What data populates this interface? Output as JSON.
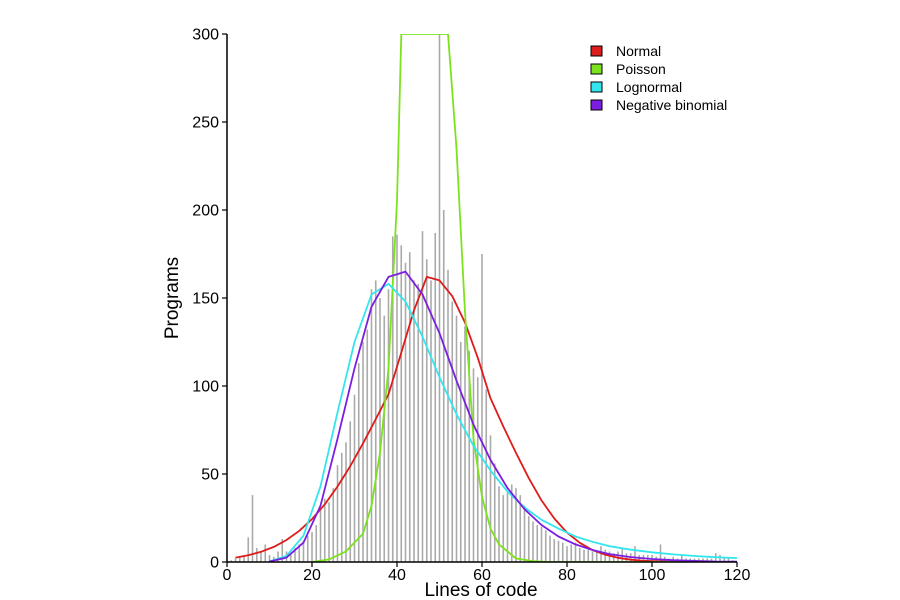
{
  "chart_data": {
    "type": "bar",
    "xlabel": "Lines of code",
    "ylabel": "Programs",
    "xlim": [
      0,
      120
    ],
    "ylim": [
      0,
      300
    ],
    "xticks": [
      0,
      20,
      40,
      60,
      80,
      100,
      120
    ],
    "yticks": [
      0,
      50,
      100,
      150,
      200,
      250,
      300
    ],
    "grid": false,
    "legend_position": "top-right",
    "histogram": {
      "color": "#aaaaaa",
      "x": [
        1,
        2,
        3,
        4,
        5,
        6,
        7,
        8,
        9,
        10,
        11,
        12,
        13,
        14,
        15,
        16,
        17,
        18,
        19,
        20,
        21,
        22,
        23,
        24,
        25,
        26,
        27,
        28,
        29,
        30,
        31,
        32,
        33,
        34,
        35,
        36,
        37,
        38,
        39,
        40,
        41,
        42,
        43,
        44,
        45,
        46,
        47,
        48,
        49,
        50,
        51,
        52,
        53,
        54,
        55,
        56,
        57,
        58,
        59,
        60,
        61,
        62,
        63,
        64,
        65,
        66,
        67,
        68,
        69,
        70,
        71,
        72,
        73,
        74,
        75,
        76,
        77,
        78,
        79,
        80,
        81,
        82,
        83,
        84,
        85,
        86,
        87,
        88,
        89,
        90,
        91,
        92,
        93,
        94,
        95,
        96,
        97,
        98,
        99,
        100,
        101,
        102,
        103,
        104,
        105,
        106,
        107,
        108,
        109,
        110,
        111,
        112,
        113,
        114,
        115,
        116,
        117,
        118,
        119
      ],
      "values": [
        1,
        2,
        3,
        4,
        14,
        38,
        8,
        6,
        10,
        4,
        3,
        6,
        13,
        6,
        4,
        8,
        10,
        12,
        15,
        17,
        21,
        30,
        36,
        34,
        42,
        55,
        62,
        68,
        80,
        95,
        113,
        125,
        132,
        155,
        160,
        150,
        140,
        155,
        185,
        186,
        180,
        170,
        176,
        160,
        158,
        188,
        172,
        160,
        187,
        300,
        200,
        166,
        148,
        140,
        125,
        134,
        120,
        110,
        105,
        175,
        98,
        72,
        56,
        43,
        38,
        40,
        44,
        42,
        38,
        32,
        26,
        23,
        21,
        20,
        18,
        15,
        13,
        12,
        11,
        9,
        10,
        11,
        8,
        7,
        7,
        6,
        6,
        9,
        7,
        6,
        5,
        6,
        8,
        5,
        5,
        9,
        4,
        4,
        4,
        4,
        3,
        10,
        3,
        2,
        3,
        2,
        4,
        2,
        2,
        2,
        2,
        2,
        2,
        2,
        5,
        4,
        2,
        2,
        1
      ]
    },
    "series": [
      {
        "name": "Normal",
        "color": "#dd1c1c",
        "x": [
          2,
          5,
          8,
          11,
          14,
          17,
          20,
          23,
          26,
          29,
          32,
          35,
          38,
          41,
          44,
          47,
          50,
          53,
          56,
          59,
          62,
          65,
          68,
          71,
          74,
          77,
          80,
          83,
          86,
          89,
          92,
          95,
          98,
          101,
          104,
          107,
          110,
          113,
          116,
          119
        ],
        "y": [
          2.5,
          3.8,
          5.8,
          8.6,
          12.5,
          17.7,
          24.4,
          32.8,
          42.9,
          54.5,
          67.4,
          81.2,
          95.3,
          119,
          143,
          162,
          160,
          151,
          136,
          116,
          93,
          77,
          62,
          47.6,
          35,
          24.7,
          16.7,
          10.9,
          6.8,
          4.1,
          2.4,
          1.3,
          0.7,
          0.4,
          0.2,
          0.1,
          0,
          0,
          0,
          0
        ]
      },
      {
        "name": "Poisson",
        "color": "#7de21e",
        "x": [
          20,
          24,
          28,
          32,
          34,
          36,
          38,
          40,
          41,
          42,
          44,
          46,
          48,
          49,
          50,
          51,
          52,
          54,
          56,
          58,
          60,
          62,
          64,
          68,
          72,
          76,
          80,
          90,
          100,
          110,
          120
        ],
        "y": [
          0,
          1.5,
          6,
          16,
          32,
          62,
          110,
          205,
          300,
          300,
          300,
          300,
          300,
          300,
          300,
          300,
          300,
          235,
          142,
          70,
          37,
          19,
          10,
          2,
          0.5,
          0,
          0,
          0,
          0,
          0,
          0
        ]
      },
      {
        "name": "Lognormal",
        "color": "#33e6ee",
        "x": [
          10,
          14,
          18,
          22,
          26,
          30,
          34,
          38,
          42,
          46,
          50,
          54,
          58,
          62,
          66,
          70,
          74,
          78,
          82,
          86,
          90,
          95,
          100,
          105,
          110,
          115,
          120
        ],
        "y": [
          0.3,
          3.5,
          15,
          43,
          85,
          125,
          152,
          158,
          148,
          128,
          105,
          84,
          66,
          52,
          40,
          31,
          24,
          19,
          14.5,
          11.5,
          9,
          7,
          5.5,
          4.3,
          3.4,
          2.7,
          2.2
        ]
      },
      {
        "name": "Negative binomial",
        "color": "#7b1ee0",
        "x": [
          10,
          14,
          18,
          22,
          26,
          30,
          34,
          38,
          42,
          46,
          50,
          54,
          58,
          62,
          66,
          70,
          74,
          78,
          82,
          86,
          90,
          95,
          100,
          105,
          110,
          115,
          120
        ],
        "y": [
          0.3,
          2.5,
          11,
          32,
          70,
          110,
          145,
          162,
          165,
          152,
          130,
          103,
          78,
          58,
          42,
          30,
          21,
          14.5,
          10,
          6.8,
          4.5,
          2.8,
          1.7,
          1,
          0.6,
          0.3,
          0.2
        ]
      }
    ]
  }
}
